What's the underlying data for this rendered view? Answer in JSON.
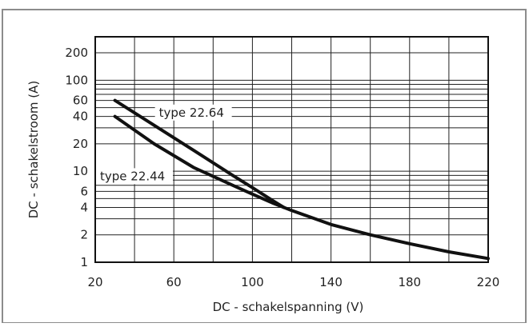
{
  "chart_data": {
    "type": "line",
    "title": "",
    "xlabel": "DC - schakelspanning (V)",
    "ylabel": "DC - schakelstroom (A)",
    "xlim": [
      20,
      220
    ],
    "ylim": [
      1,
      300
    ],
    "y_scale": "log",
    "grid": true,
    "x_ticks": [
      20,
      60,
      100,
      140,
      180,
      220
    ],
    "x_tick_labels": [
      "20",
      "60",
      "100",
      "140",
      "180",
      "220"
    ],
    "y_ticks": [
      1,
      2,
      4,
      6,
      10,
      20,
      40,
      60,
      100,
      200
    ],
    "y_tick_labels": [
      "1",
      "2",
      "4",
      "6",
      "10",
      "20",
      "40",
      "60",
      "100",
      "200"
    ],
    "series": [
      {
        "name": "type 22.64",
        "x": [
          30,
          50,
          70,
          90,
          100,
          110,
          116
        ],
        "y": [
          60,
          32,
          17,
          9,
          6.6,
          4.8,
          4.0
        ]
      },
      {
        "name": "type 22.44",
        "x": [
          30,
          50,
          70,
          90,
          100,
          110,
          120,
          140,
          160,
          180,
          200,
          220
        ],
        "y": [
          40,
          20,
          11,
          7,
          5.6,
          4.5,
          3.7,
          2.6,
          2.0,
          1.6,
          1.3,
          1.1
        ]
      }
    ]
  }
}
